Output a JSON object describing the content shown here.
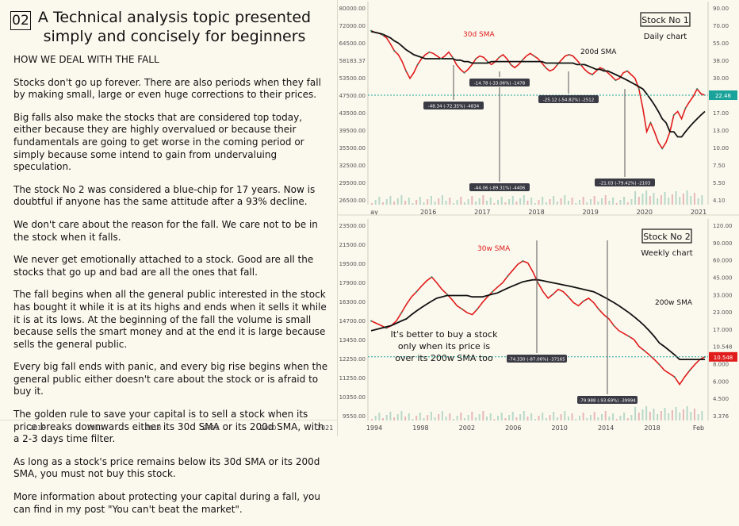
{
  "number": "02",
  "title_line1": "A Technical analysis topic presented",
  "title_line2": "simply and concisely for beginners",
  "heading": "HOW WE DEAL WITH THE FALL",
  "paragraphs": [
    "Stocks don't go up forever. There are also periods when they fall by making small, large or even huge corrections to their prices.",
    "Big falls also make the stocks that are considered top today, either because they are highly overvalued or because their fundamentals are going to get worse in the coming period or simply because some intend to gain from undervaluing speculation.",
    "The stock No 2 was considered a blue-chip for 17 years. Now is doubtful if anyone has the same attitude after a 93% decline.",
    "We don't care about the reason for the fall. We care not to be in the stock when it falls.",
    "We never get emotionally attached to a stock. Good are all the stocks that go up and bad are all the ones that fall.",
    "The fall begins when all the general public interested in the stock has bought it while it is at its highs and ends when it sells it while it is at its lows. At the beginning of the fall the volume is small because sells the smart money and at the end it is large because sells the general public.",
    "Every big fall ends with panic, and every big rise begins when the general public either doesn't care about the stock or is afraid to buy it.",
    "The golden rule to save your capital is to sell a stock when its price breaks downwards either its 30d SMA or its 200d SMA, with a 2-3 days time filter.",
    "As long as a stock's price remains below its 30d SMA or its 200d SMA, you must not buy this stock.",
    "More information about protecting your capital during a fall, you can find in my post \"You can't beat the market\"."
  ],
  "left_axis_years": [
    "2016",
    "2017",
    "2018",
    "2019",
    "2020",
    "2021"
  ],
  "chart_data": [
    {
      "type": "line",
      "box_title": "Stock No 1",
      "box_subtitle": "Daily chart",
      "series": [
        {
          "name": "30d SMA",
          "color": "#e01b1b"
        },
        {
          "name": "200d SMA",
          "color": "#111111"
        }
      ],
      "left_ticks": [
        "80000.00",
        "72000.00",
        "64500.00",
        "58183.37",
        "53500.00",
        "47500.00",
        "43500.00",
        "39500.00",
        "35500.00",
        "32500.00",
        "29500.00",
        "26500.00"
      ],
      "right_ticks": [
        "90.00",
        "70.00",
        "55.00",
        "38.00",
        "30.00",
        "22.46",
        "17.00",
        "13.00",
        "10.00",
        "7.50",
        "5.50",
        "4.10"
      ],
      "x_ticks": [
        "ay",
        "2016",
        "2017",
        "2018",
        "2019",
        "2020",
        "2021"
      ],
      "price_label": "22.46",
      "left_price_label": "58183.37",
      "annotations": [
        "-48.34 (-72.35%) -4834",
        "-14.78 (-33.06%) -1478",
        "-25.12 (-54.82%) -2512",
        "-44.06 (-89.31%) -4406",
        "-21.03 (-79.42%) -2103"
      ],
      "price_x": [
        0,
        5,
        10,
        15,
        20,
        25,
        30,
        35,
        40,
        45,
        50,
        55,
        60,
        65,
        70,
        75,
        80,
        85,
        90,
        95,
        100,
        105,
        110,
        115,
        120,
        125,
        130,
        135,
        140,
        145,
        150,
        155,
        160,
        165,
        170,
        175,
        180,
        185,
        190,
        195,
        200,
        205,
        210,
        215,
        220,
        225,
        230,
        235,
        240,
        245,
        250,
        255,
        260,
        265,
        270,
        275,
        280,
        285,
        290,
        295,
        300,
        305,
        310,
        315,
        320,
        325,
        330,
        335,
        340,
        345,
        350,
        355,
        360,
        365,
        370,
        375,
        380,
        385,
        390,
        395,
        400,
        405,
        410,
        415,
        420,
        425,
        430
      ],
      "price": [
        68,
        66,
        65,
        63,
        60,
        54,
        48,
        45,
        40,
        34,
        30,
        33,
        38,
        42,
        45,
        47,
        46,
        44,
        42,
        44,
        47,
        43,
        38,
        35,
        33,
        35,
        38,
        42,
        44,
        43,
        40,
        38,
        40,
        43,
        45,
        42,
        38,
        36,
        38,
        41,
        44,
        46,
        44,
        42,
        39,
        36,
        34,
        35,
        38,
        41,
        44,
        45,
        44,
        41,
        38,
        35,
        33,
        32,
        34,
        36,
        35,
        33,
        31,
        29,
        30,
        33,
        34,
        32,
        30,
        25,
        18,
        12,
        14,
        12,
        10,
        9,
        10,
        12,
        16,
        17,
        15,
        18,
        20,
        22,
        25,
        23,
        22.46
      ],
      "sma200": [
        67,
        66,
        65,
        64,
        62,
        60,
        57,
        55,
        52,
        49,
        47,
        45,
        44,
        43,
        42,
        42,
        42,
        42,
        42,
        42,
        42,
        42,
        41,
        41,
        40,
        40,
        39,
        39,
        39,
        39,
        39,
        40,
        40,
        40,
        40,
        40,
        40,
        40,
        40,
        40,
        40,
        40,
        40,
        40,
        40,
        39,
        39,
        39,
        39,
        39,
        39,
        39,
        39,
        38,
        38,
        38,
        37,
        36,
        35,
        35,
        34,
        34,
        33,
        32,
        31,
        30,
        29,
        28,
        27,
        26,
        25,
        23,
        21,
        19,
        17,
        15,
        14,
        12,
        12,
        11,
        11,
        12,
        13,
        14,
        15,
        16,
        17
      ],
      "y_min": 4.1,
      "y_max": 90
    },
    {
      "type": "line",
      "box_title": "Stock No 2",
      "box_subtitle": "Weekly chart",
      "series": [
        {
          "name": "30w SMA",
          "color": "#e01b1b"
        },
        {
          "name": "200w SMA",
          "color": "#111111"
        }
      ],
      "left_ticks": [
        "23500.00",
        "21500.00",
        "19500.00",
        "17900.00",
        "16300.00",
        "14700.00",
        "13450.00",
        "12250.00",
        "11250.00",
        "10350.00",
        "9550.00"
      ],
      "right_ticks": [
        "120.00",
        "90.000",
        "60.000",
        "45.000",
        "33.000",
        "23.000",
        "17.000",
        "10.548",
        "8.000",
        "6.000",
        "4.500",
        "3.376"
      ],
      "x_ticks": [
        "1994",
        "1998",
        "2002",
        "2006",
        "2010",
        "2014",
        "2018",
        "Feb"
      ],
      "price_label": "10.548",
      "note": "It's better to buy a stock only when its price is over its 200w SMA too",
      "annotations": [
        "-74.330 (-87.06%) -37165",
        "-79.988 (-93.69%) -39994"
      ],
      "price": [
        22,
        21,
        20,
        19,
        20,
        22,
        26,
        31,
        36,
        40,
        45,
        50,
        54,
        48,
        42,
        38,
        34,
        30,
        28,
        26,
        25,
        28,
        32,
        36,
        40,
        44,
        48,
        55,
        62,
        70,
        75,
        72,
        60,
        48,
        40,
        35,
        38,
        42,
        40,
        36,
        32,
        30,
        33,
        35,
        32,
        28,
        25,
        23,
        20,
        18,
        17,
        16,
        15,
        13,
        12,
        11,
        10,
        9,
        8,
        7.5,
        7,
        6,
        7,
        8,
        9,
        10,
        10.548
      ],
      "sma200": [
        18,
        18.5,
        19,
        19.5,
        20,
        21,
        22,
        23,
        25,
        27,
        29,
        31,
        33,
        35,
        36,
        37,
        37,
        37,
        37,
        37,
        36,
        36,
        36,
        37,
        38,
        39,
        41,
        43,
        45,
        47,
        49,
        50,
        51,
        51,
        50,
        49,
        48,
        47,
        46,
        45,
        44,
        43,
        42,
        41,
        40,
        38,
        36,
        34,
        32,
        30,
        28,
        26,
        24,
        22,
        20,
        18,
        16,
        14,
        13,
        12,
        11,
        10,
        10,
        10,
        10,
        10,
        10
      ],
      "y_min": 3.376,
      "y_max": 120
    }
  ]
}
